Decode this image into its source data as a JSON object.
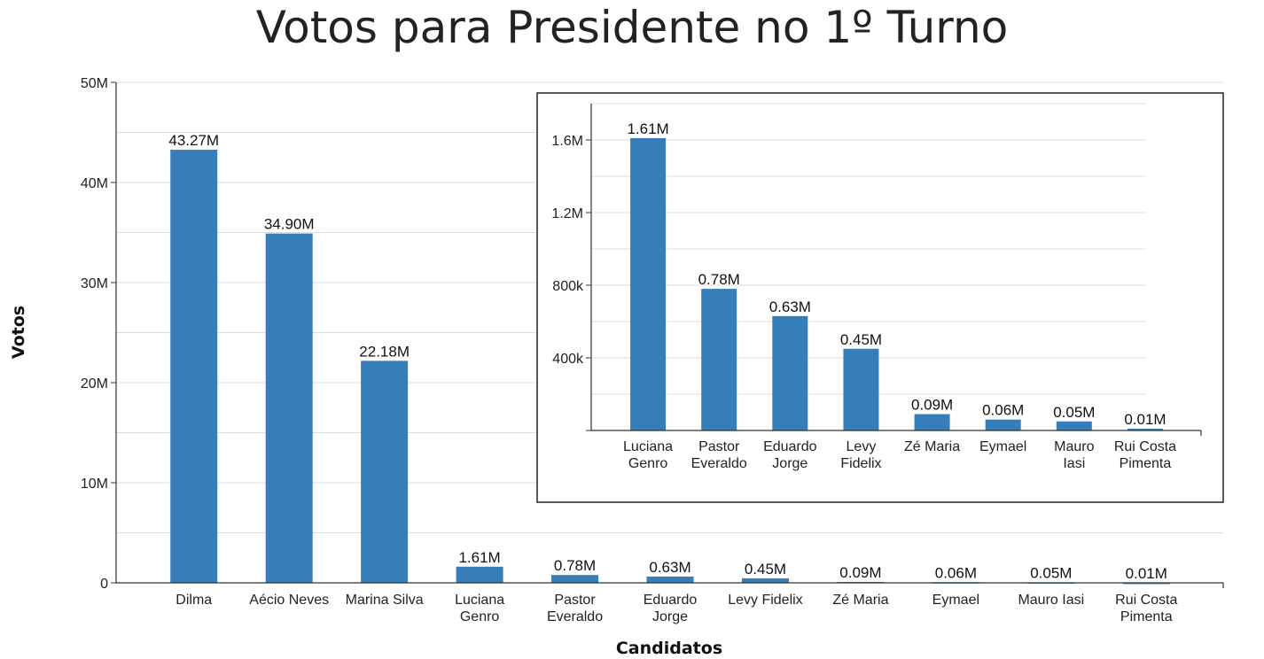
{
  "title": "Votos para Presidente no 1º Turno",
  "colors": {
    "bar": "#377eb8",
    "grid": "#dcdcdc",
    "axis": "#333333",
    "inset_border": "#222222"
  },
  "chart_data": [
    {
      "type": "bar",
      "xlabel": "Candidatos",
      "ylabel": "Votos",
      "ylim": [
        0,
        50000000
      ],
      "y_ticks": [
        {
          "value": 0,
          "label": "0"
        },
        {
          "value": 10000000,
          "label": "10M"
        },
        {
          "value": 20000000,
          "label": "20M"
        },
        {
          "value": 30000000,
          "label": "30M"
        },
        {
          "value": 40000000,
          "label": "40M"
        },
        {
          "value": 50000000,
          "label": "50M"
        }
      ],
      "grid": true,
      "categories": [
        [
          "Dilma"
        ],
        [
          "Aécio Neves"
        ],
        [
          "Marina Silva"
        ],
        [
          "Luciana",
          "Genro"
        ],
        [
          "Pastor",
          "Everaldo"
        ],
        [
          "Eduardo",
          "Jorge"
        ],
        [
          "Levy Fidelix"
        ],
        [
          "Zé Maria"
        ],
        [
          "Eymael"
        ],
        [
          "Mauro Iasi"
        ],
        [
          "Rui Costa",
          "Pimenta"
        ]
      ],
      "values": [
        43270000,
        34900000,
        22180000,
        1610000,
        780000,
        630000,
        450000,
        90000,
        60000,
        50000,
        10000
      ],
      "value_labels": [
        "43.27M",
        "34.90M",
        "22.18M",
        "1.61M",
        "0.78M",
        "0.63M",
        "0.45M",
        "0.09M",
        "0.06M",
        "0.05M",
        "0.01M"
      ]
    },
    {
      "type": "bar",
      "xlabel": "",
      "ylabel": "",
      "ylim": [
        0,
        1800000
      ],
      "y_ticks": [
        {
          "value": 0,
          "label": ""
        },
        {
          "value": 400000,
          "label": "400k"
        },
        {
          "value": 800000,
          "label": "800k"
        },
        {
          "value": 1200000,
          "label": "1.2M"
        },
        {
          "value": 1600000,
          "label": "1.6M"
        }
      ],
      "grid": true,
      "categories": [
        [
          "Luciana",
          "Genro"
        ],
        [
          "Pastor",
          "Everaldo"
        ],
        [
          "Eduardo",
          "Jorge"
        ],
        [
          "Levy",
          "Fidelix"
        ],
        [
          "Zé Maria"
        ],
        [
          "Eymael"
        ],
        [
          "Mauro",
          "Iasi"
        ],
        [
          "Rui Costa",
          "Pimenta"
        ]
      ],
      "values": [
        1610000,
        780000,
        630000,
        450000,
        90000,
        60000,
        50000,
        10000
      ],
      "value_labels": [
        "1.61M",
        "0.78M",
        "0.63M",
        "0.45M",
        "0.09M",
        "0.06M",
        "0.05M",
        "0.01M"
      ]
    }
  ]
}
